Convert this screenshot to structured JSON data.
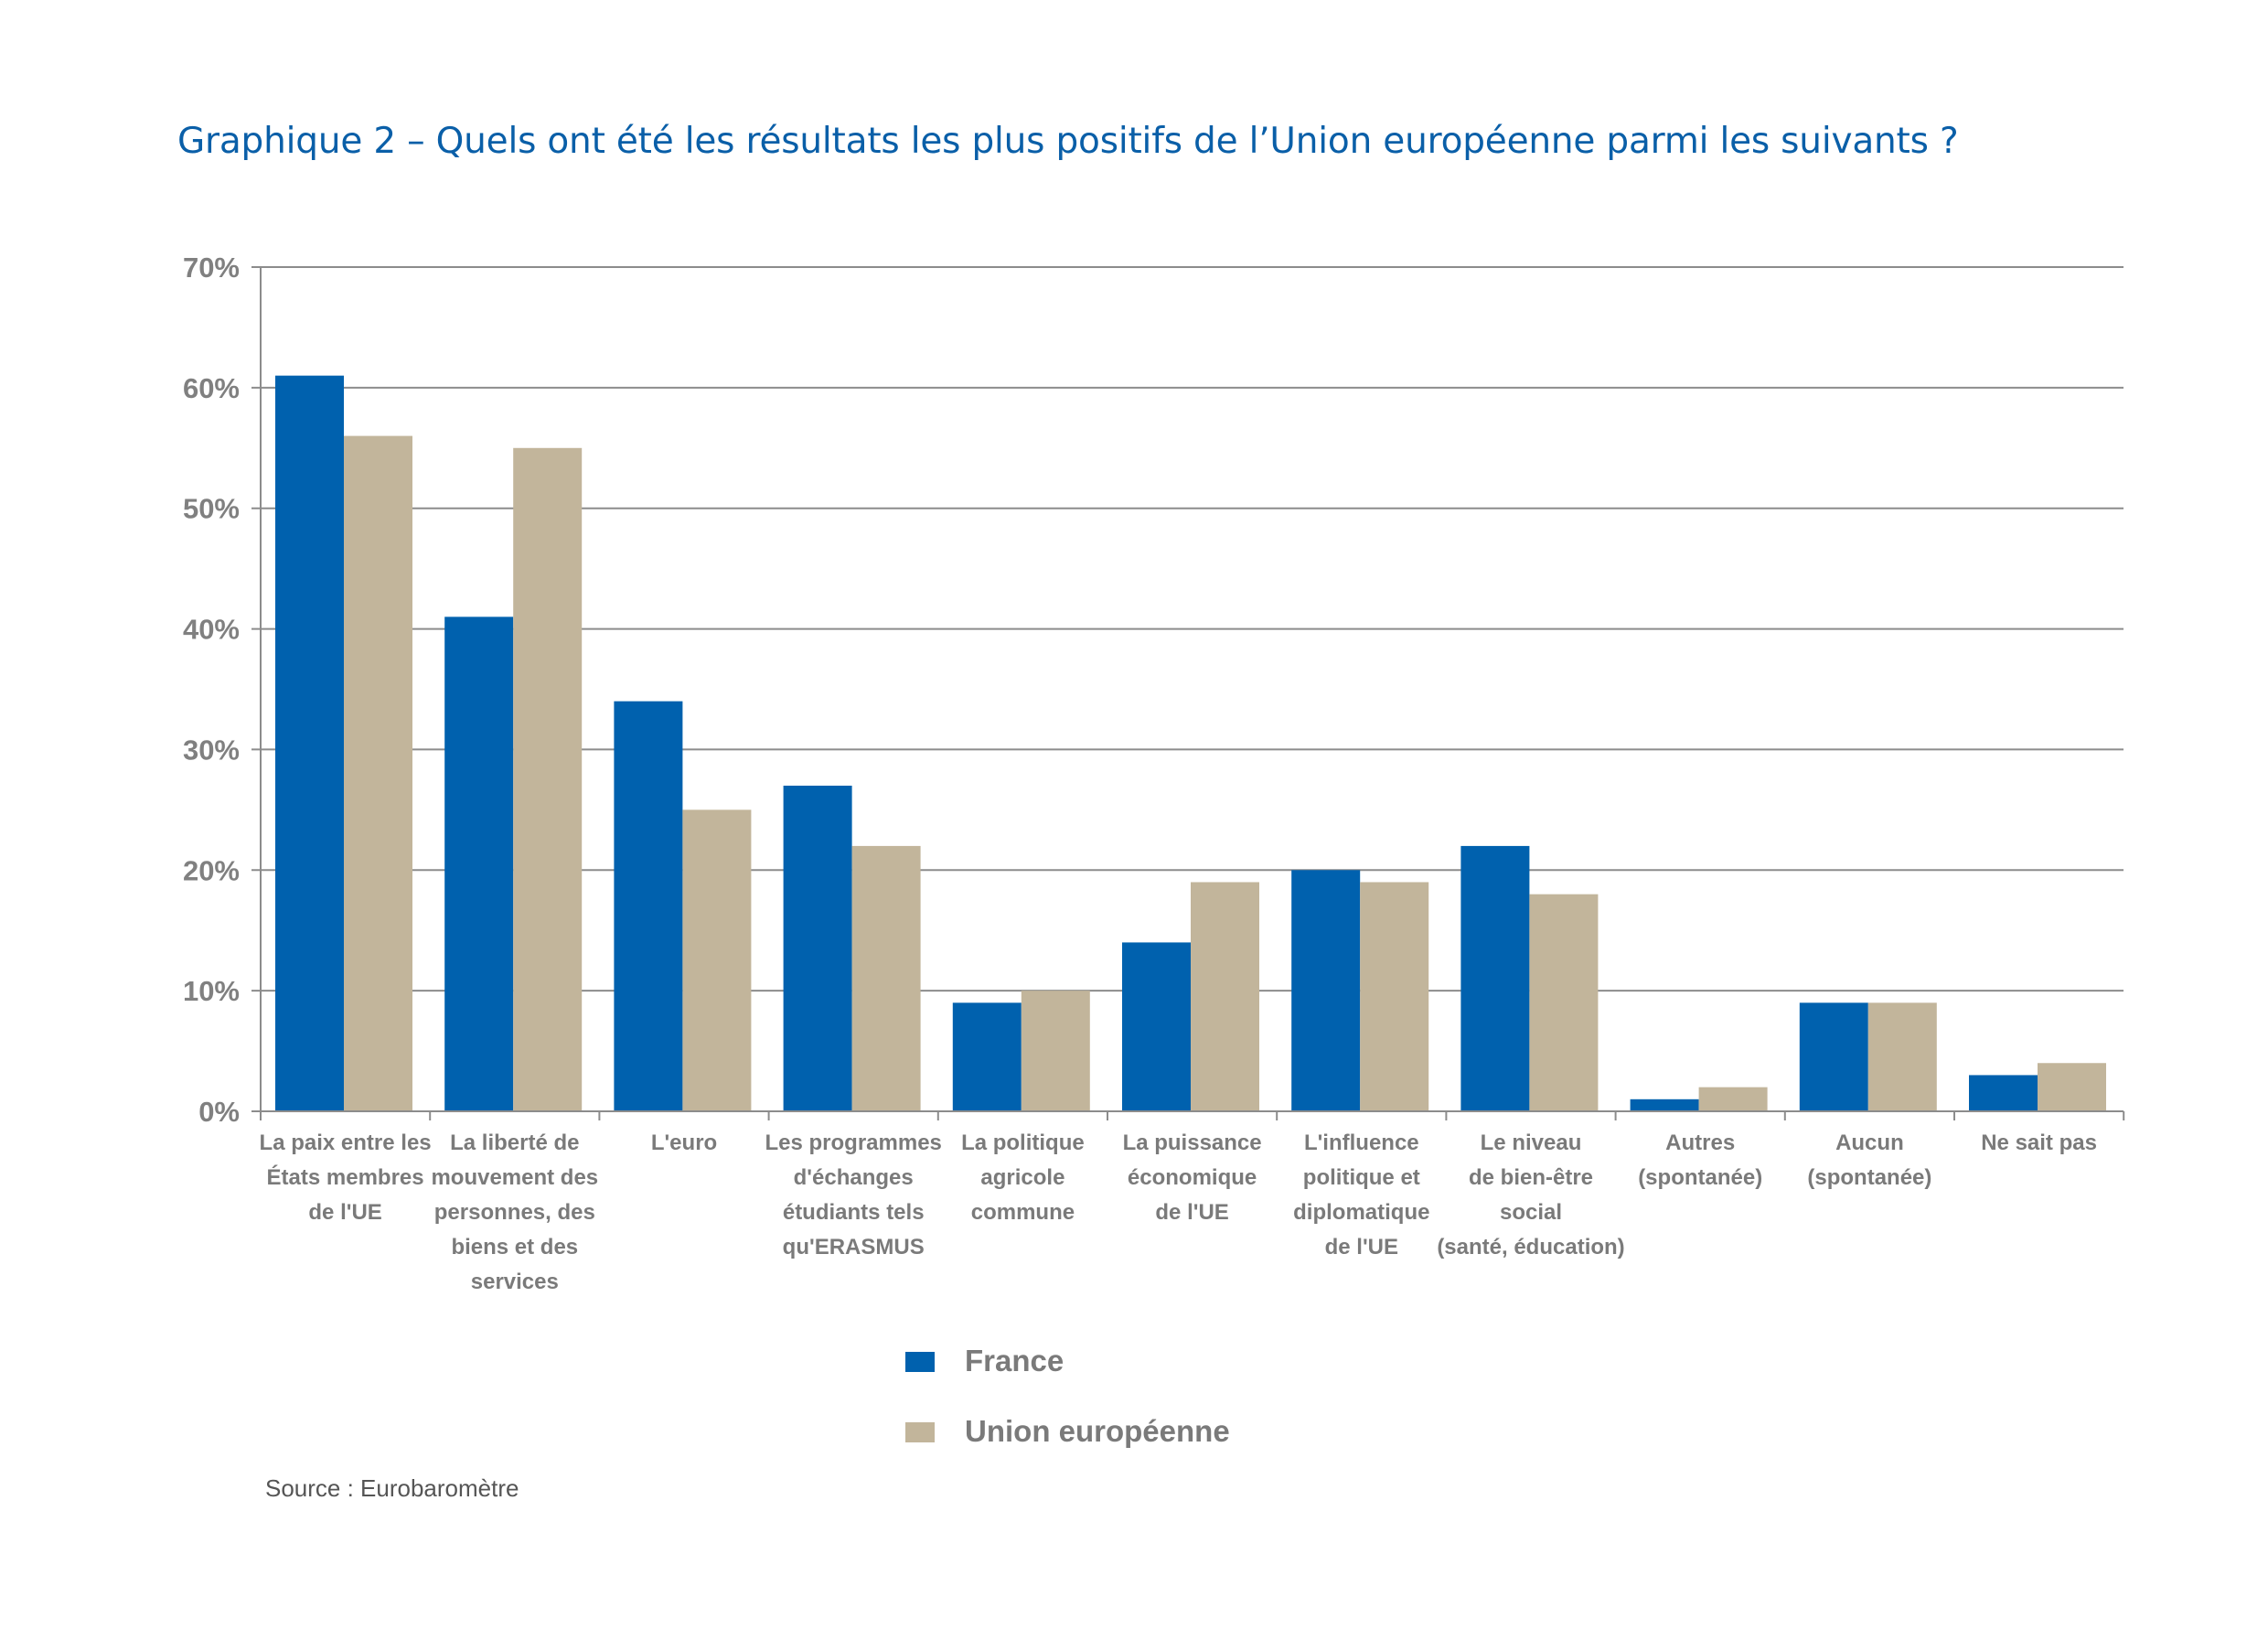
{
  "chart_data": {
    "type": "bar",
    "title": "Graphique 2 – Quels ont été les résultats les plus positifs de l’Union européenne parmi les suivants ?",
    "xlabel": "",
    "ylabel": "",
    "ylim": [
      0,
      70
    ],
    "yticks": [
      0,
      10,
      20,
      30,
      40,
      50,
      60,
      70
    ],
    "ytick_labels": [
      "0%",
      "10%",
      "20%",
      "30%",
      "40%",
      "50%",
      "60%",
      "70%"
    ],
    "grid": true,
    "legend_position": "bottom-center",
    "categories": [
      [
        "La paix entre les",
        "États membres",
        "de l'UE"
      ],
      [
        "La liberté de",
        "mouvement des",
        "personnes, des",
        "biens et des",
        "services"
      ],
      [
        "L'euro"
      ],
      [
        "Les programmes",
        "d'échanges",
        "étudiants tels",
        "qu'ERASMUS"
      ],
      [
        "La politique",
        "agricole",
        "commune"
      ],
      [
        "La puissance",
        "économique",
        "de l'UE"
      ],
      [
        "L'influence",
        "politique et",
        "diplomatique",
        "de l'UE"
      ],
      [
        "Le niveau",
        "de bien-être",
        "social",
        "(santé, éducation)"
      ],
      [
        "Autres",
        "(spontanée)"
      ],
      [
        "Aucun",
        "(spontanée)"
      ],
      [
        "Ne sait pas"
      ]
    ],
    "series": [
      {
        "name": "France",
        "color": "#0061ae",
        "values": [
          61,
          41,
          34,
          27,
          9,
          14,
          20,
          22,
          1,
          9,
          3
        ]
      },
      {
        "name": "Union européenne",
        "color": "#c2b59b",
        "values": [
          56,
          55,
          25,
          22,
          10,
          19,
          19,
          18,
          2,
          9,
          4
        ]
      }
    ]
  },
  "source": "Source : Eurobaromètre",
  "colors": {
    "title": "#0a5fa8",
    "grid": "#8c8c8c",
    "axis_text": "#7a7a7a"
  }
}
